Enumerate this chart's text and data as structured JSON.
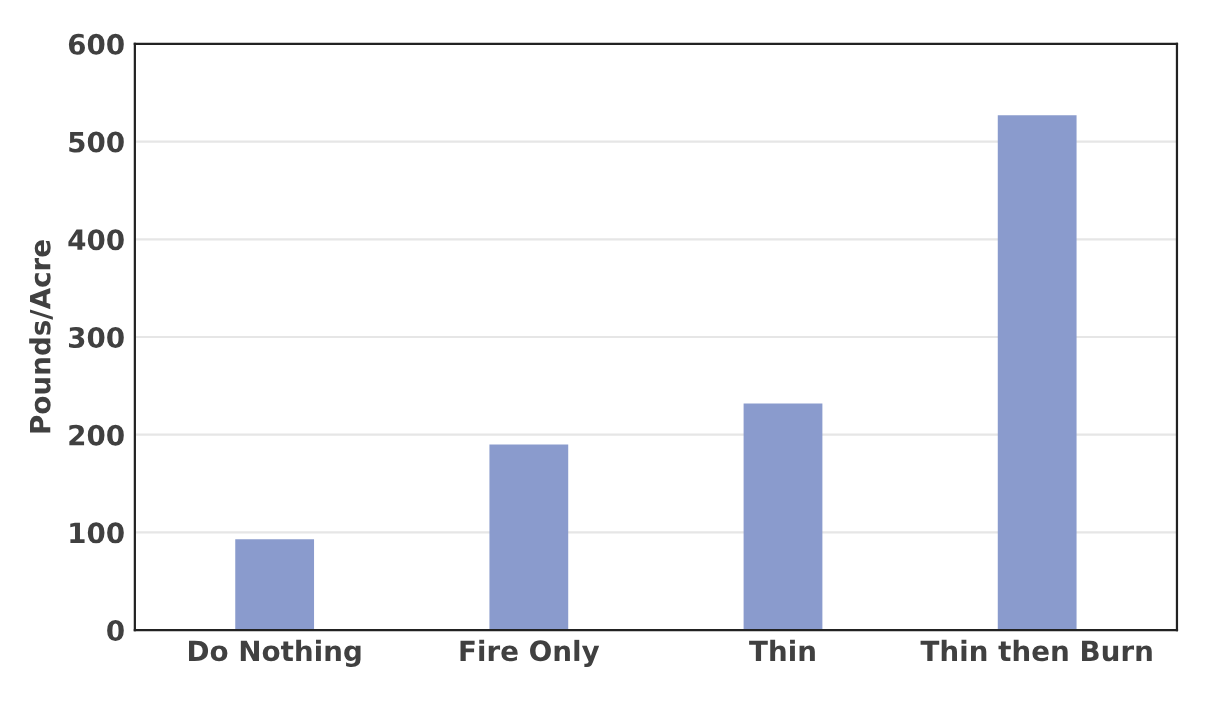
{
  "chart_data": {
    "type": "bar",
    "ylabel": "Pounds/Acre",
    "categories": [
      "Do Nothing",
      "Fire Only",
      "Thin",
      "Thin then Burn"
    ],
    "values": [
      93,
      190,
      232,
      527
    ],
    "color": "#8a9bcd",
    "ylim": [
      0,
      600
    ],
    "yticks": [
      0,
      100,
      200,
      300,
      400,
      500,
      600
    ],
    "grid": "y"
  }
}
